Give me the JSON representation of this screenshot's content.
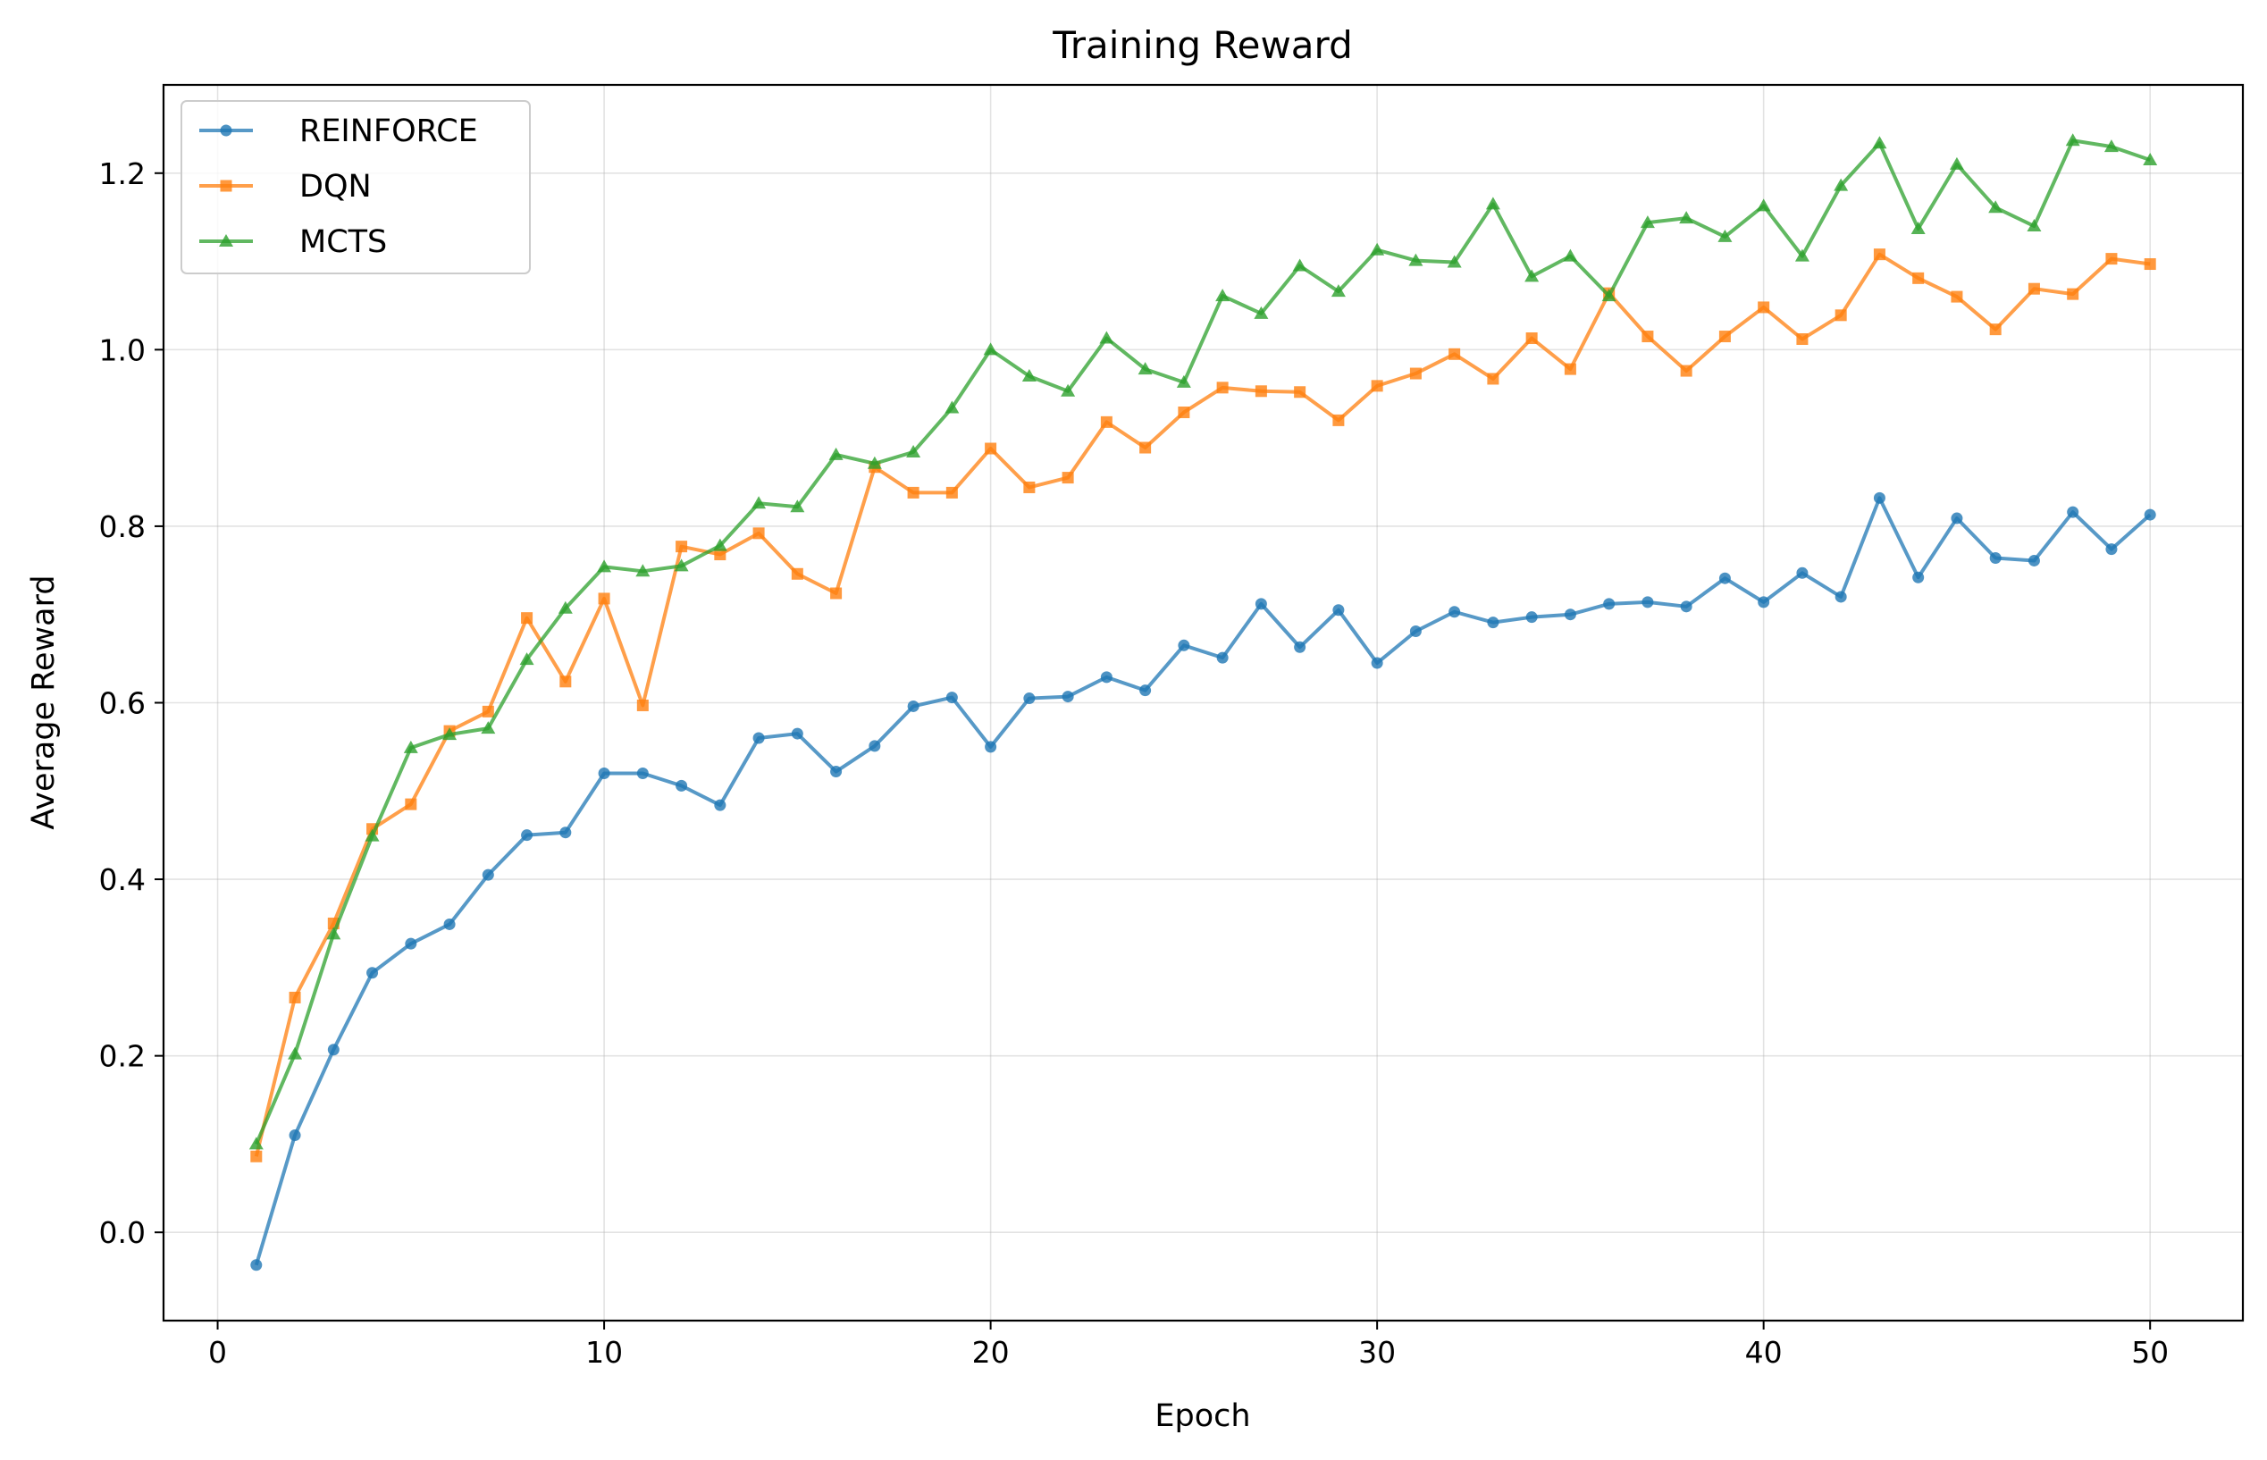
{
  "chart_data": {
    "type": "line",
    "title": "Training Reward",
    "xlabel": "Epoch",
    "ylabel": "Average Reward",
    "xlim": [
      -1.4,
      52.4
    ],
    "ylim": [
      -0.1,
      1.3
    ],
    "xticks": [
      0,
      10,
      20,
      30,
      40,
      50
    ],
    "yticks": [
      0.0,
      0.2,
      0.4,
      0.6,
      0.8,
      1.0,
      1.2
    ],
    "xtick_labels": [
      "0",
      "10",
      "20",
      "30",
      "40",
      "50"
    ],
    "ytick_labels": [
      "0.0",
      "0.2",
      "0.4",
      "0.6",
      "0.8",
      "1.0",
      "1.2"
    ],
    "grid": true,
    "legend_position": "top-left",
    "x": [
      1,
      2,
      3,
      4,
      5,
      6,
      7,
      8,
      9,
      10,
      11,
      12,
      13,
      14,
      15,
      16,
      17,
      18,
      19,
      20,
      21,
      22,
      23,
      24,
      25,
      26,
      27,
      28,
      29,
      30,
      31,
      32,
      33,
      34,
      35,
      36,
      37,
      38,
      39,
      40,
      41,
      42,
      43,
      44,
      45,
      46,
      47,
      48,
      49,
      50
    ],
    "series": [
      {
        "name": "REINFORCE",
        "color": "#1f77b4",
        "marker": "circle",
        "values": [
          -0.037,
          0.11,
          0.207,
          0.294,
          0.327,
          0.349,
          0.405,
          0.45,
          0.453,
          0.52,
          0.52,
          0.506,
          0.484,
          0.56,
          0.565,
          0.522,
          0.551,
          0.596,
          0.606,
          0.55,
          0.605,
          0.607,
          0.629,
          0.614,
          0.665,
          0.651,
          0.712,
          0.663,
          0.705,
          0.645,
          0.681,
          0.703,
          0.691,
          0.697,
          0.7,
          0.712,
          0.714,
          0.709,
          0.741,
          0.714,
          0.747,
          0.72,
          0.832,
          0.742,
          0.809,
          0.764,
          0.761,
          0.816,
          0.774,
          0.813
        ]
      },
      {
        "name": "DQN",
        "color": "#ff7f0e",
        "marker": "square",
        "values": [
          0.086,
          0.266,
          0.35,
          0.457,
          0.485,
          0.568,
          0.59,
          0.696,
          0.624,
          0.718,
          0.597,
          0.777,
          0.768,
          0.792,
          0.746,
          0.724,
          0.867,
          0.838,
          0.838,
          0.888,
          0.844,
          0.855,
          0.918,
          0.889,
          0.929,
          0.957,
          0.953,
          0.952,
          0.92,
          0.959,
          0.973,
          0.995,
          0.967,
          1.013,
          0.978,
          1.064,
          1.015,
          0.976,
          1.015,
          1.048,
          1.012,
          1.039,
          1.108,
          1.081,
          1.06,
          1.023,
          1.069,
          1.063,
          1.103,
          1.097
        ]
      },
      {
        "name": "MCTS",
        "color": "#2ca02c",
        "marker": "triangle",
        "values": [
          0.1,
          0.202,
          0.338,
          0.449,
          0.549,
          0.564,
          0.571,
          0.649,
          0.707,
          0.754,
          0.749,
          0.755,
          0.778,
          0.826,
          0.822,
          0.881,
          0.871,
          0.884,
          0.934,
          1.0,
          0.97,
          0.953,
          1.013,
          0.978,
          0.963,
          1.061,
          1.041,
          1.095,
          1.066,
          1.113,
          1.101,
          1.099,
          1.165,
          1.083,
          1.106,
          1.061,
          1.144,
          1.149,
          1.128,
          1.163,
          1.106,
          1.186,
          1.234,
          1.137,
          1.21,
          1.161,
          1.14,
          1.237,
          1.23,
          1.215
        ]
      }
    ]
  }
}
